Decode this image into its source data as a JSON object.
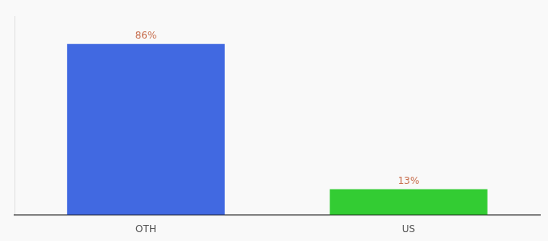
{
  "chart_data": {
    "type": "bar",
    "categories": [
      "OTH",
      "US"
    ],
    "values": [
      86,
      13
    ],
    "colors": [
      "#4169e1",
      "#33cc33"
    ],
    "ylim": [
      0,
      100
    ],
    "data_labels": true,
    "value_labels": [
      "86%",
      "13%"
    ],
    "tick_labels": "x",
    "grid": false
  }
}
